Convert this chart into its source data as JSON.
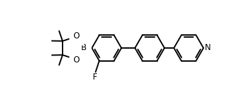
{
  "bg_color": "#ffffff",
  "lc": "#000000",
  "lw": 1.4,
  "fig_w": 3.52,
  "fig_h": 1.4,
  "dpi": 100,
  "xlim": [
    0.0,
    9.5
  ],
  "ylim": [
    0.2,
    4.8
  ]
}
